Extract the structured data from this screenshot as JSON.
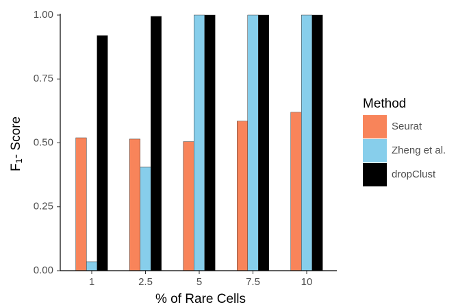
{
  "chart_data": {
    "type": "bar",
    "y_label": {
      "main": "F",
      "subscript": "1",
      "rest": "- Score"
    },
    "x_label": "% of Rare Cells",
    "categories": [
      "1",
      "2.5",
      "5",
      "7.5",
      "10"
    ],
    "series": [
      {
        "name": "Seurat",
        "color": "#f8845a",
        "values": [
          0.52,
          0.515,
          0.505,
          0.585,
          0.62
        ]
      },
      {
        "name": "Zheng et al.",
        "color": "#87ceeb",
        "values": [
          0.035,
          0.405,
          1,
          1,
          1
        ]
      },
      {
        "name": "dropClust",
        "color": "#000000",
        "values": [
          0.92,
          0.995,
          1,
          1,
          1
        ]
      }
    ],
    "legend_title": "Method",
    "legend": "right",
    "ylim": [
      0,
      1
    ],
    "yticks": [
      {
        "value": 0,
        "label": "0.00"
      },
      {
        "value": 0.25,
        "label": "0.25"
      },
      {
        "value": 0.5,
        "label": "0.50"
      },
      {
        "value": 0.75,
        "label": "0.75"
      },
      {
        "value": 1,
        "label": "1.00"
      }
    ]
  }
}
